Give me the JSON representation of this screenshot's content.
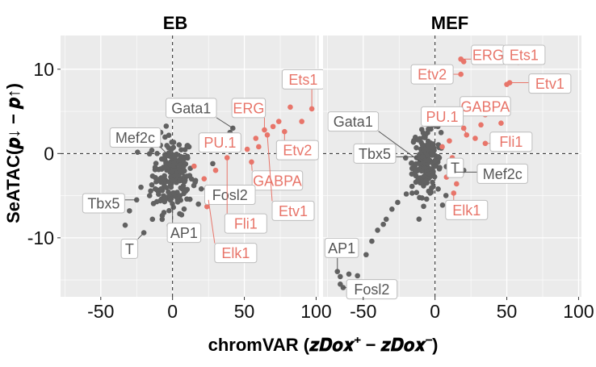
{
  "chart_data": {
    "type": "scatter",
    "xlabel": "chromVAR (z_Dox+ − z_Dox−)",
    "xlabel_plain": "chromVAR",
    "xlabel_math": "(𝒛𝑫𝒐𝒙⁺ − 𝒛𝑫𝒐𝒙⁻)",
    "ylabel": "SeATAC(p↓ − p↑)",
    "ylabel_plain": "SeATAC",
    "ylabel_math": "(𝒑↓ − 𝒑↑)",
    "xlim": [
      -78,
      102
    ],
    "ylim": [
      -17,
      14
    ],
    "xticks": [
      -50,
      0,
      50,
      100
    ],
    "yticks": [
      10,
      0,
      -10
    ],
    "ytick_labels": [
      "10",
      "0",
      "-10"
    ],
    "xtick_labels": [
      "-50",
      "0",
      "50",
      "100"
    ],
    "grid": true,
    "colors": {
      "highlight": "#e8756a",
      "other": "#616161",
      "panel": "#ebebeb",
      "gridline": "#ffffff",
      "label_highlight_text": "#e8756a",
      "label_other_text": "#555555"
    },
    "panels": [
      {
        "title": "EB",
        "highlight_points": [
          {
            "x": 97,
            "y": 5.3
          },
          {
            "x": 82,
            "y": 5.5
          },
          {
            "x": 90,
            "y": 3.8
          },
          {
            "x": 74,
            "y": 3.8
          },
          {
            "x": 70,
            "y": 3.2
          },
          {
            "x": 78,
            "y": 2.6
          },
          {
            "x": 66,
            "y": 2.2
          },
          {
            "x": 64,
            "y": 2.8
          },
          {
            "x": 58,
            "y": 1.8
          },
          {
            "x": 60,
            "y": 0.8
          },
          {
            "x": 52,
            "y": 0.5
          },
          {
            "x": 55,
            "y": -1.0
          },
          {
            "x": 46,
            "y": 0.6
          },
          {
            "x": 38,
            "y": -0.5
          },
          {
            "x": 30,
            "y": -2.0
          },
          {
            "x": 22,
            "y": -3.0
          },
          {
            "x": 27,
            "y": -4.2
          },
          {
            "x": 25,
            "y": -5.5
          },
          {
            "x": 24,
            "y": -6.3
          },
          {
            "x": 15,
            "y": -1.5
          }
        ],
        "other_points": [
          {
            "x": 42,
            "y": 3.0
          },
          {
            "x": 40,
            "y": 2.5
          },
          {
            "x": -33,
            "y": -8.5
          },
          {
            "x": -30,
            "y": -6.8
          },
          {
            "x": -20,
            "y": -9.4
          },
          {
            "x": -25,
            "y": -5.5
          },
          {
            "x": -16,
            "y": -5.0
          },
          {
            "x": -12,
            "y": -4.2
          },
          {
            "x": -8,
            "y": -3.4
          },
          {
            "x": 16,
            "y": -3.2
          },
          {
            "x": 20,
            "y": -4.2
          },
          {
            "x": 18,
            "y": -6.0
          },
          {
            "x": 10,
            "y": -5.4
          },
          {
            "x": -6,
            "y": -7.0
          },
          {
            "x": -14,
            "y": -7.8
          },
          {
            "x": -22,
            "y": -4.0
          },
          {
            "x": 28,
            "y": -1.2
          },
          {
            "x": 24,
            "y": 0.8
          }
        ],
        "cluster": {
          "center_x": 0,
          "center_y": -2.5,
          "spread_x": 7,
          "spread_y": 2.3,
          "count": 190
        },
        "labels": [
          {
            "text": "Ets1",
            "color": "highlight",
            "box_x": 91,
            "box_y": 8.8,
            "px": 97,
            "py": 5.3
          },
          {
            "text": "Gata1",
            "color": "other",
            "box_x": 13,
            "box_y": 5.4,
            "px": 42,
            "py": 3.0
          },
          {
            "text": "ERG",
            "color": "highlight",
            "box_x": 53,
            "box_y": 5.4,
            "px": 64,
            "py": 2.8
          },
          {
            "text": "Mef2c",
            "color": "other",
            "box_x": -26,
            "box_y": 1.9,
            "px": -4,
            "py": 0.0
          },
          {
            "text": "PU.1",
            "color": "highlight",
            "box_x": 33,
            "box_y": 1.3,
            "px": 46,
            "py": 0.6
          },
          {
            "text": "Etv2",
            "color": "highlight",
            "box_x": 87,
            "box_y": 0.4,
            "px": 78,
            "py": 2.6
          },
          {
            "text": "GABPA",
            "color": "highlight",
            "box_x": 73,
            "box_y": -3.2,
            "px": 55,
            "py": -1.0
          },
          {
            "text": "Fosl2",
            "color": "other",
            "box_x": 40,
            "box_y": -4.9,
            "px": 20,
            "py": -4.2
          },
          {
            "text": "Etv1",
            "color": "highlight",
            "box_x": 84,
            "box_y": -6.8,
            "px": 66,
            "py": 2.2
          },
          {
            "text": "Tbx5",
            "color": "other",
            "box_x": -48,
            "box_y": -5.9,
            "px": -25,
            "py": -5.5
          },
          {
            "text": "AP1",
            "color": "other",
            "box_x": 8,
            "box_y": -9.4,
            "px": 0,
            "py": -6.0
          },
          {
            "text": "Fli1",
            "color": "highlight",
            "box_x": 51,
            "box_y": -8.3,
            "px": 38,
            "py": -0.5
          },
          {
            "text": "T",
            "color": "other",
            "box_x": -30,
            "box_y": -11.3,
            "px": -20,
            "py": -9.4
          },
          {
            "text": "Elk1",
            "color": "highlight",
            "box_x": 44,
            "box_y": -11.8,
            "px": 25,
            "py": -5.5
          }
        ]
      },
      {
        "title": "MEF",
        "highlight_points": [
          {
            "x": 18,
            "y": 11.2
          },
          {
            "x": 20,
            "y": 10.9
          },
          {
            "x": 18,
            "y": 9.4
          },
          {
            "x": 58,
            "y": 10.8
          },
          {
            "x": 50,
            "y": 8.2
          },
          {
            "x": 52,
            "y": 8.4
          },
          {
            "x": 35,
            "y": 4.6
          },
          {
            "x": 32,
            "y": 3.4
          },
          {
            "x": 46,
            "y": 3.6
          },
          {
            "x": 20,
            "y": 3.0
          },
          {
            "x": 22,
            "y": 2.2
          },
          {
            "x": 28,
            "y": 1.8
          },
          {
            "x": 35,
            "y": 1.2
          },
          {
            "x": 10,
            "y": 1.5
          },
          {
            "x": 12,
            "y": -0.5
          },
          {
            "x": 8,
            "y": -2.8
          },
          {
            "x": 15,
            "y": -3.6
          },
          {
            "x": 13,
            "y": -4.7
          },
          {
            "x": 5,
            "y": 0.8
          }
        ],
        "other_points": [
          {
            "x": 6,
            "y": 4.0
          },
          {
            "x": 2,
            "y": 3.2
          },
          {
            "x": -68,
            "y": -14.0
          },
          {
            "x": -66,
            "y": -14.6
          },
          {
            "x": -60,
            "y": -14.3
          },
          {
            "x": -54,
            "y": -14.5
          },
          {
            "x": -66,
            "y": -15.5
          },
          {
            "x": -64,
            "y": -15.9
          },
          {
            "x": -48,
            "y": -12.0
          },
          {
            "x": -44,
            "y": -10.4
          },
          {
            "x": -40,
            "y": -9.1
          },
          {
            "x": -34,
            "y": -7.8
          },
          {
            "x": -30,
            "y": -6.6
          },
          {
            "x": -26,
            "y": -5.8
          },
          {
            "x": -20,
            "y": -4.8
          },
          {
            "x": -16,
            "y": -3.9
          },
          {
            "x": -12,
            "y": -3.2
          },
          {
            "x": -36,
            "y": -8.4
          },
          {
            "x": 20,
            "y": -2.0
          },
          {
            "x": 14,
            "y": -2.2
          }
        ],
        "cluster": {
          "center_x": -6,
          "center_y": -1.0,
          "spread_x": 5,
          "spread_y": 2.0,
          "count": 170
        },
        "labels": [
          {
            "text": "ERG",
            "color": "highlight",
            "box_x": 37,
            "box_y": 11.7,
            "px": 18,
            "py": 11.2
          },
          {
            "text": "Ets1",
            "color": "highlight",
            "box_x": 62,
            "box_y": 11.7,
            "px": 58,
            "py": 10.8
          },
          {
            "text": "Etv2",
            "color": "highlight",
            "box_x": -2,
            "box_y": 9.4,
            "px": 18,
            "py": 9.4
          },
          {
            "text": "Etv1",
            "color": "highlight",
            "box_x": 80,
            "box_y": 8.3,
            "px": 52,
            "py": 8.4
          },
          {
            "text": "GABPA",
            "color": "highlight",
            "box_x": 35,
            "box_y": 5.6,
            "px": 35,
            "py": 4.6
          },
          {
            "text": "PU.1",
            "color": "highlight",
            "box_x": 5,
            "box_y": 4.4,
            "px": 22,
            "py": 2.2
          },
          {
            "text": "Gata1",
            "color": "other",
            "box_x": -57,
            "box_y": 3.8,
            "px": -10,
            "py": -1.0
          },
          {
            "text": "Fli1",
            "color": "highlight",
            "box_x": 53,
            "box_y": 1.4,
            "px": 35,
            "py": 1.2
          },
          {
            "text": "Tbx5",
            "color": "other",
            "box_x": -42,
            "box_y": 0.0,
            "px": -12,
            "py": -0.4
          },
          {
            "text": "T",
            "color": "other",
            "box_x": 14,
            "box_y": -1.7,
            "px": 10,
            "py": -1.0
          },
          {
            "text": "Mef2c",
            "color": "other",
            "box_x": 47,
            "box_y": -2.4,
            "px": 14,
            "py": -2.2
          },
          {
            "text": "Elk1",
            "color": "highlight",
            "box_x": 22,
            "box_y": -6.7,
            "px": 13,
            "py": -4.7
          },
          {
            "text": "AP1",
            "color": "other",
            "box_x": -65,
            "box_y": -11.2,
            "px": -68,
            "py": -14.0
          },
          {
            "text": "Fosl2",
            "color": "other",
            "box_x": -44,
            "box_y": -16.1,
            "px": -64,
            "py": -15.9
          }
        ]
      }
    ]
  }
}
